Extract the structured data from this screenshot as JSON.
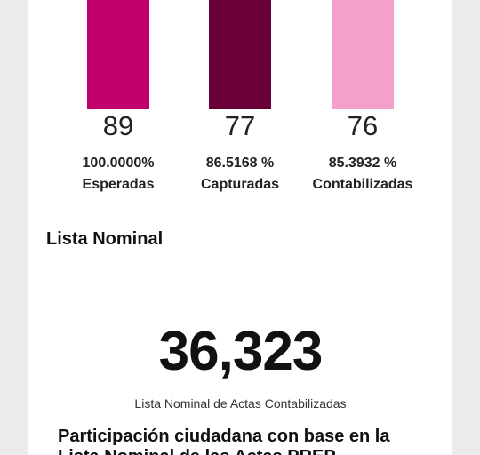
{
  "colors": {
    "esperadas": "#c2006d",
    "capturadas": "#6b0038",
    "contabilizadas": "#f5a0cc"
  },
  "actas": [
    {
      "count": "89",
      "percent": "100.0000%",
      "label": "Esperadas"
    },
    {
      "count": "77",
      "percent": "86.5168 %",
      "label": "Capturadas"
    },
    {
      "count": "76",
      "percent": "85.3932 %",
      "label": "Contabilizadas"
    }
  ],
  "lista_nominal": {
    "title": "Lista Nominal",
    "value": "36,323",
    "caption": "Lista Nominal de Actas Contabilizadas"
  },
  "participacion": {
    "title": "Participación ciudadana con base en la Lista Nominal de las Actas PREP"
  }
}
